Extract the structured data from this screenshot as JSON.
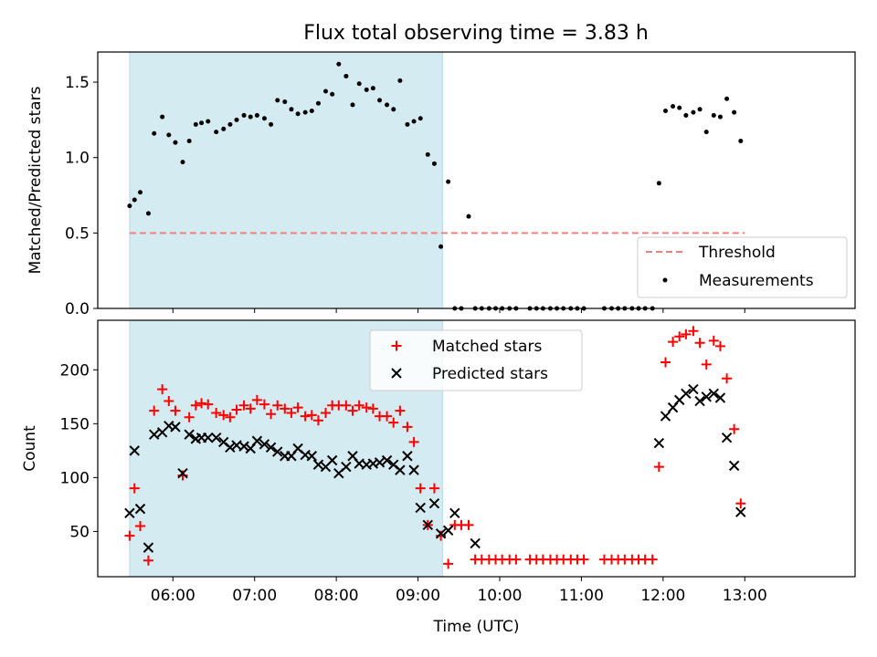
{
  "chart_data": {
    "title": "Flux total observing time = 3.83 h",
    "xlabel": "Time (UTC)",
    "x_tick_labels": [
      "06:00",
      "07:00",
      "08:00",
      "09:00",
      "10:00",
      "11:00",
      "12:00",
      "13:00"
    ],
    "x_ticks": [
      6,
      7,
      8,
      9,
      10,
      11,
      12,
      13
    ],
    "xlim": [
      5.08,
      14.35
    ],
    "shaded_region": {
      "x_start": 5.47,
      "x_end": 9.3,
      "color": "#d4ebf1"
    },
    "panels": [
      {
        "type": "scatter",
        "ylabel": "Matched/Predicted stars",
        "ylim": [
          0,
          1.7
        ],
        "y_ticks": [
          0,
          0.5,
          1.0,
          1.5
        ],
        "y_tick_labels": [
          "0.0",
          "0.5",
          "1.0",
          "1.5"
        ],
        "legend_position": "bottom-right",
        "threshold": {
          "name": "Threshold",
          "value": 0.5,
          "x_start": 5.47,
          "x_end": 13.0,
          "color": "#f08080"
        },
        "series": [
          {
            "name": "Measurements",
            "color": "#000000",
            "marker": "dot",
            "x": [
              5.47,
              5.53,
              5.6,
              5.7,
              5.77,
              5.87,
              5.95,
              6.03,
              6.12,
              6.2,
              6.28,
              6.35,
              6.43,
              6.53,
              6.62,
              6.7,
              6.78,
              6.87,
              6.95,
              7.03,
              7.12,
              7.2,
              7.28,
              7.37,
              7.45,
              7.53,
              7.62,
              7.7,
              7.78,
              7.87,
              7.95,
              8.03,
              8.12,
              8.2,
              8.28,
              8.37,
              8.45,
              8.53,
              8.62,
              8.7,
              8.78,
              8.87,
              8.95,
              9.03,
              9.12,
              9.2,
              9.28,
              9.37,
              9.45,
              9.53,
              9.62,
              9.7,
              9.78,
              9.87,
              9.95,
              10.03,
              10.12,
              10.2,
              10.37,
              10.45,
              10.53,
              10.62,
              10.7,
              10.78,
              10.87,
              10.95,
              11.03,
              11.28,
              11.37,
              11.45,
              11.53,
              11.62,
              11.7,
              11.78,
              11.87,
              11.95,
              12.03,
              12.12,
              12.2,
              12.28,
              12.37,
              12.45,
              12.53,
              12.62,
              12.7,
              12.78,
              12.87,
              12.95
            ],
            "y": [
              0.68,
              0.72,
              0.77,
              0.63,
              1.16,
              1.27,
              1.15,
              1.1,
              0.97,
              1.11,
              1.22,
              1.23,
              1.24,
              1.17,
              1.19,
              1.22,
              1.25,
              1.28,
              1.27,
              1.28,
              1.26,
              1.22,
              1.38,
              1.37,
              1.32,
              1.29,
              1.3,
              1.31,
              1.36,
              1.44,
              1.42,
              1.62,
              1.54,
              1.35,
              1.49,
              1.45,
              1.46,
              1.38,
              1.35,
              1.32,
              1.51,
              1.22,
              1.24,
              1.26,
              1.02,
              0.96,
              0.41,
              0.84,
              0,
              0,
              0.61,
              0,
              0,
              0,
              0,
              0,
              0,
              0,
              0,
              0,
              0,
              0,
              0,
              0,
              0,
              0,
              0,
              0,
              0,
              0,
              0,
              0,
              0,
              0,
              0,
              0.83,
              1.31,
              1.34,
              1.33,
              1.28,
              1.3,
              1.32,
              1.17,
              1.28,
              1.27,
              1.39,
              1.3,
              1.11
            ]
          }
        ]
      },
      {
        "type": "scatter",
        "ylabel": "Count",
        "ylim": [
          8,
          246
        ],
        "y_ticks": [
          50,
          100,
          150,
          200
        ],
        "y_tick_labels": [
          "50",
          "100",
          "150",
          "200"
        ],
        "legend_position": "top-center",
        "series": [
          {
            "name": "Matched stars",
            "color": "#ff0000",
            "marker": "plus",
            "x": [
              5.47,
              5.53,
              5.6,
              5.7,
              5.77,
              5.87,
              5.95,
              6.03,
              6.12,
              6.2,
              6.28,
              6.35,
              6.43,
              6.53,
              6.62,
              6.7,
              6.78,
              6.87,
              6.95,
              7.03,
              7.12,
              7.2,
              7.28,
              7.37,
              7.45,
              7.53,
              7.62,
              7.7,
              7.78,
              7.87,
              7.95,
              8.03,
              8.12,
              8.2,
              8.28,
              8.37,
              8.45,
              8.53,
              8.62,
              8.7,
              8.78,
              8.87,
              8.95,
              9.03,
              9.12,
              9.2,
              9.28,
              9.37,
              9.45,
              9.53,
              9.62,
              9.7,
              9.78,
              9.87,
              9.95,
              10.03,
              10.12,
              10.2,
              10.37,
              10.45,
              10.53,
              10.62,
              10.7,
              10.78,
              10.87,
              10.95,
              11.03,
              11.28,
              11.37,
              11.45,
              11.53,
              11.62,
              11.7,
              11.78,
              11.87,
              11.95,
              12.03,
              12.12,
              12.2,
              12.28,
              12.37,
              12.45,
              12.53,
              12.62,
              12.7,
              12.78,
              12.87,
              12.95
            ],
            "y": [
              46,
              90,
              55,
              23,
              162,
              182,
              171,
              162,
              102,
              156,
              167,
              169,
              168,
              160,
              158,
              156,
              163,
              167,
              164,
              172,
              168,
              159,
              167,
              164,
              160,
              165,
              157,
              158,
              153,
              160,
              167,
              167,
              167,
              162,
              167,
              165,
              164,
              157,
              157,
              151,
              162,
              147,
              133,
              90,
              56,
              90,
              46,
              20,
              56,
              56,
              56,
              24,
              24,
              24,
              24,
              24,
              24,
              24,
              24,
              24,
              24,
              24,
              24,
              24,
              24,
              24,
              24,
              24,
              24,
              24,
              24,
              24,
              24,
              24,
              24,
              110,
              207,
              226,
              231,
              233,
              236,
              225,
              205,
              227,
              222,
              192,
              145,
              76
            ]
          },
          {
            "name": "Predicted stars",
            "color": "#000000",
            "marker": "cross",
            "x": [
              5.47,
              5.53,
              5.6,
              5.7,
              5.77,
              5.87,
              5.95,
              6.03,
              6.12,
              6.2,
              6.28,
              6.35,
              6.43,
              6.53,
              6.62,
              6.7,
              6.78,
              6.87,
              6.95,
              7.03,
              7.12,
              7.2,
              7.28,
              7.37,
              7.45,
              7.53,
              7.62,
              7.7,
              7.78,
              7.87,
              7.95,
              8.03,
              8.12,
              8.2,
              8.28,
              8.37,
              8.45,
              8.53,
              8.62,
              8.7,
              8.78,
              8.87,
              8.95,
              9.03,
              9.12,
              9.2,
              9.28,
              9.37,
              9.45,
              9.7,
              11.95,
              12.03,
              12.12,
              12.2,
              12.28,
              12.37,
              12.45,
              12.53,
              12.62,
              12.7,
              12.78,
              12.87,
              12.95
            ],
            "y": [
              67,
              125,
              71,
              35,
              140,
              142,
              148,
              147,
              104,
              140,
              136,
              137,
              137,
              137,
              133,
              128,
              130,
              129,
              127,
              134,
              131,
              128,
              124,
              120,
              120,
              127,
              121,
              120,
              112,
              110,
              116,
              104,
              110,
              120,
              113,
              112,
              113,
              114,
              116,
              112,
              107,
              120,
              107,
              72,
              56,
              76,
              48,
              51,
              67,
              39,
              132,
              157,
              165,
              172,
              178,
              182,
              171,
              175,
              178,
              174,
              137,
              111,
              68
            ]
          }
        ]
      }
    ]
  }
}
